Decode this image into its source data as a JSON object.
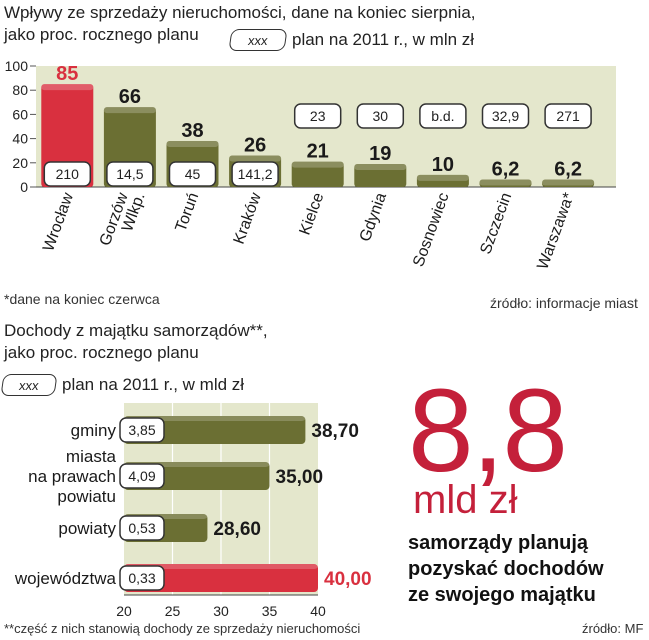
{
  "chart_data": [
    {
      "type": "bar",
      "title": "Wpływy ze sprzedaży nieruchomości, dane na koniec sierpnia,\njako proc. rocznego planu",
      "legend_key": "xxx",
      "legend_text": "plan na 2011 r., w mln zł",
      "categories": [
        "Wrocław",
        "Gorzów Wlkp.",
        "Toruń",
        "Kraków",
        "Kielce",
        "Gdynia",
        "Sosnowiec",
        "Szczecin",
        "Warszawa*"
      ],
      "values": [
        85,
        66,
        38,
        26,
        21,
        19,
        10,
        6.2,
        6.2
      ],
      "value_labels": [
        "85",
        "66",
        "38",
        "26",
        "21",
        "19",
        "10",
        "6,2",
        "6,2"
      ],
      "plans": [
        "210",
        "14,5",
        "45",
        "141,2",
        "23",
        "30",
        "b.d.",
        "32,9",
        "271"
      ],
      "yticks": [
        "0",
        "20",
        "40",
        "60",
        "80",
        "100"
      ],
      "ylim": [
        0,
        100
      ],
      "grid": false,
      "colors": {
        "highlight": "#d9303f",
        "bar": "#6b6f33",
        "band": "#e4e7cc"
      }
    },
    {
      "type": "bar",
      "orientation": "horizontal",
      "title": "Dochody z majątku samorządów**,\njako proc. rocznego planu",
      "legend_key": "xxx",
      "legend_text": "plan na 2011 r., w mld zł",
      "categories": [
        "gminy",
        "miasta na prawach powiatu",
        "powiaty",
        "województwa"
      ],
      "category_lines": [
        [
          "gminy"
        ],
        [
          "miasta",
          "na prawach",
          "powiatu"
        ],
        [
          "powiaty"
        ],
        [
          "województwa"
        ]
      ],
      "values": [
        38.7,
        35.0,
        28.6,
        40.0
      ],
      "value_labels": [
        "38,70",
        "35,00",
        "28,60",
        "40,00"
      ],
      "plans": [
        "3,85",
        "4,09",
        "0,53",
        "0,33"
      ],
      "xticks": [
        "20",
        "25",
        "30",
        "35",
        "40"
      ],
      "xlim": [
        20,
        40
      ],
      "colors": {
        "highlight": "#d9303f",
        "bar": "#6b6f33",
        "band": "#e4e7cc"
      }
    }
  ],
  "texts": {
    "title1": "Wpływy ze sprzedaży nieruchomości, dane na koniec sierpnia,\njako proc. rocznego planu",
    "key1": "xxx",
    "key1_text": "plan na 2011 r., w mln zł",
    "note1": "*dane na koniec czerwca",
    "source1": "źródło: informacje miast",
    "title2": "Dochody z majątku samorządów**,\njako proc. rocznego planu",
    "key2": "xxx",
    "key2_text": "plan na 2011 r., w mld zł",
    "highlight_value": "8,8",
    "highlight_unit": "mld zł",
    "highlight_text": "samorządy planują\npozyskać dochodów\nze swojego majątku",
    "note2": "**część z nich stanowią dochody ze sprzedaży nieruchomości",
    "source2": "źródło: MF"
  }
}
